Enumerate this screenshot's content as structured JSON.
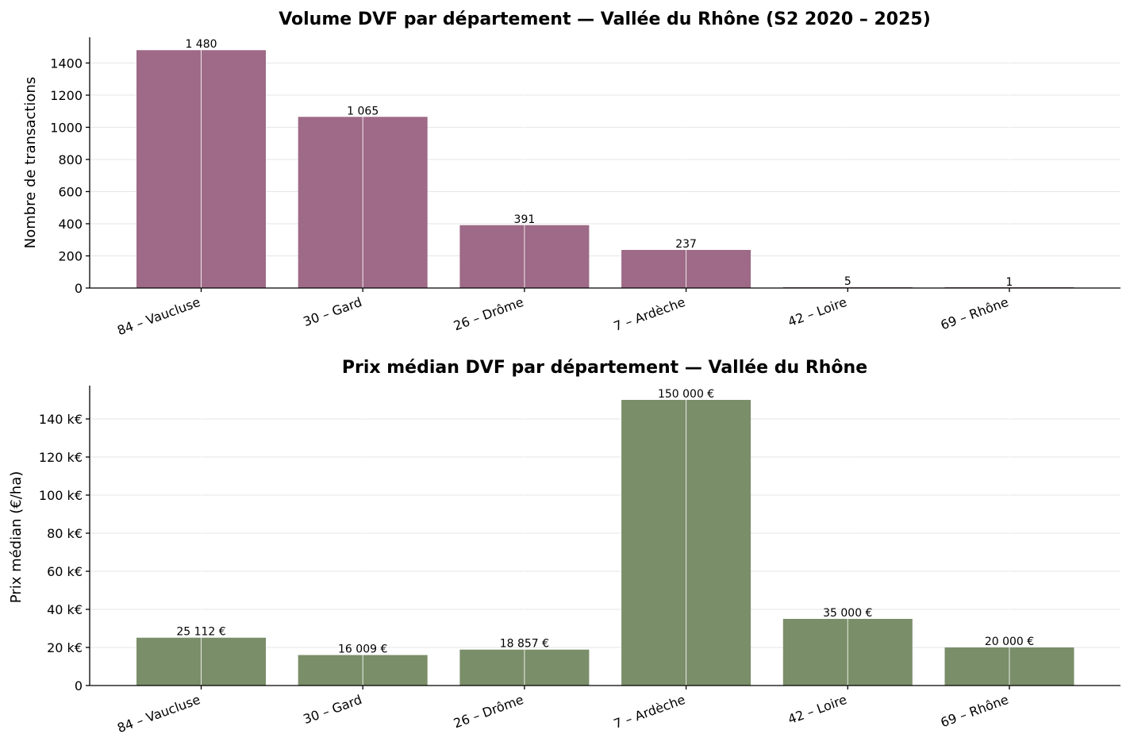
{
  "chart_data": [
    {
      "type": "bar",
      "title": "Volume DVF par département — Vallée du Rhône (S2 2020 – 2025)",
      "xlabel": "",
      "ylabel": "Nombre de transactions",
      "categories": [
        "84 – Vaucluse",
        "30 – Gard",
        "26 – Drôme",
        "7 – Ardèche",
        "42 – Loire",
        "69 – Rhône"
      ],
      "values": [
        1480,
        1065,
        391,
        237,
        5,
        1
      ],
      "data_labels": [
        "1 480",
        "1 065",
        "391",
        "237",
        "5",
        "1"
      ],
      "ylim": [
        0,
        1560
      ],
      "yticks": [
        0,
        200,
        400,
        600,
        800,
        1000,
        1200,
        1400
      ],
      "ytick_labels": [
        "0",
        "200",
        "400",
        "600",
        "800",
        "1000",
        "1200",
        "1400"
      ],
      "color": "#9e6a87",
      "grid": true
    },
    {
      "type": "bar",
      "title": "Prix médian DVF par département — Vallée du Rhône",
      "xlabel": "",
      "ylabel": "Prix médian (€/ha)",
      "categories": [
        "84 – Vaucluse",
        "30 – Gard",
        "26 – Drôme",
        "7 – Ardèche",
        "42 – Loire",
        "69 – Rhône"
      ],
      "values": [
        25112,
        16009,
        18857,
        150000,
        35000,
        20000
      ],
      "data_labels": [
        "25 112 €",
        "16 009 €",
        "18 857 €",
        "150 000 €",
        "35 000 €",
        "20 000 €"
      ],
      "ylim": [
        0,
        157500
      ],
      "yticks": [
        0,
        20000,
        40000,
        60000,
        80000,
        100000,
        120000,
        140000
      ],
      "ytick_labels": [
        "0",
        "20 k€",
        "40 k€",
        "60 k€",
        "80 k€",
        "100 k€",
        "120 k€",
        "140 k€"
      ],
      "color": "#7a8e69",
      "grid": true
    }
  ]
}
